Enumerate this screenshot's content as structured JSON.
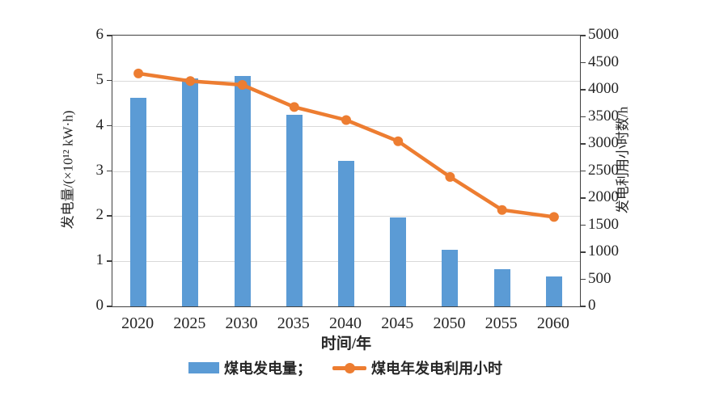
{
  "colors": {
    "bar": "#5b9bd5",
    "line": "#ed7d31",
    "frame": "#404040",
    "grid": "#d9d9d9",
    "text": "#262626"
  },
  "chart_data": {
    "type": "bar+line",
    "categories": [
      "2020",
      "2025",
      "2030",
      "2035",
      "2040",
      "2045",
      "2050",
      "2055",
      "2060"
    ],
    "series": [
      {
        "name": "煤电发电量",
        "type": "bar",
        "axis": "left",
        "values": [
          4.63,
          5.05,
          5.1,
          4.25,
          3.22,
          1.97,
          1.25,
          0.82,
          0.66
        ]
      },
      {
        "name": "煤电年发电利用小时",
        "type": "line",
        "axis": "right",
        "values": [
          4300,
          4160,
          4090,
          3680,
          3440,
          3050,
          2390,
          1780,
          1650
        ]
      }
    ],
    "title": "",
    "xlabel": "时间/年",
    "ylabel_left": "发电量/(×10¹² kW·h)",
    "ylabel_right": "发电利用小时数/h",
    "ylim_left": [
      0,
      6
    ],
    "ytick_left_step": 1,
    "ylim_right": [
      0,
      5000
    ],
    "ytick_right_step": 500,
    "grid": "horizontal-left-integers",
    "legend_position": "bottom"
  },
  "legend": {
    "bar_label": "煤电发电量；",
    "line_label": "煤电年发电利用小时"
  }
}
